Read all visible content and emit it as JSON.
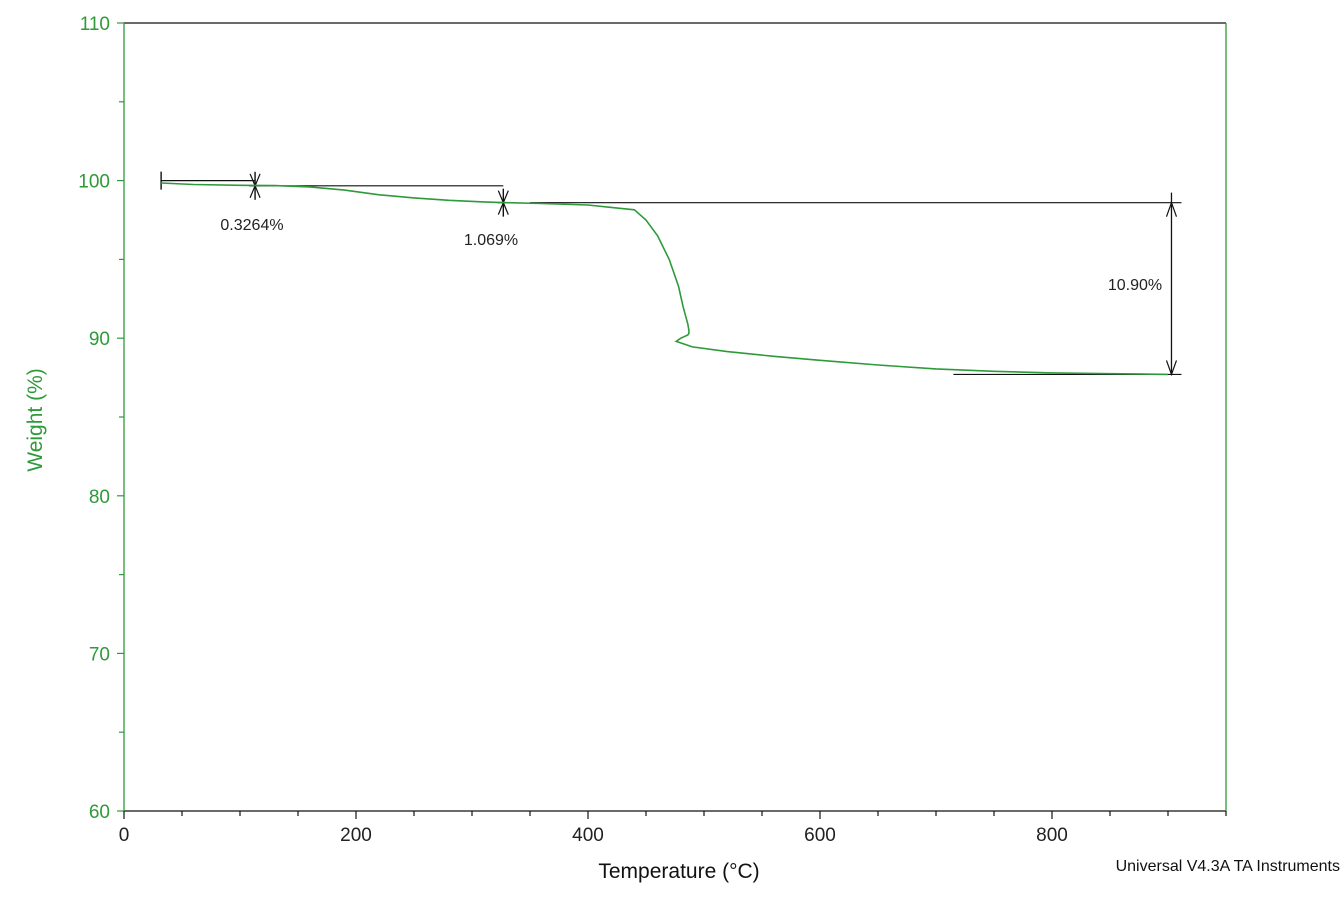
{
  "chart_data": {
    "type": "line",
    "xlabel": "Temperature (°C)",
    "ylabel": "Weight (%)",
    "xlim": [
      0,
      950
    ],
    "ylim": [
      60,
      110
    ],
    "x_ticks": [
      0,
      200,
      400,
      600,
      800
    ],
    "y_ticks": [
      60,
      70,
      80,
      90,
      100,
      110
    ],
    "grid": false,
    "series": [
      {
        "color": "#2e9a3a",
        "x": [
          32,
          60,
          100,
          130,
          160,
          190,
          220,
          250,
          280,
          310,
          330,
          360,
          400,
          420,
          440,
          450,
          460,
          470,
          478,
          482,
          486,
          487,
          487,
          486,
          480,
          476,
          490,
          520,
          560,
          600,
          650,
          700,
          750,
          800,
          850,
          900
        ],
        "y": [
          99.85,
          99.75,
          99.7,
          99.68,
          99.6,
          99.4,
          99.1,
          98.9,
          98.75,
          98.65,
          98.6,
          98.55,
          98.45,
          98.3,
          98.15,
          97.5,
          96.5,
          95.0,
          93.3,
          92.0,
          90.9,
          90.5,
          90.3,
          90.2,
          90.0,
          89.8,
          89.45,
          89.15,
          88.85,
          88.6,
          88.3,
          88.05,
          87.9,
          87.8,
          87.75,
          87.7
        ]
      }
    ],
    "annotations": [
      {
        "label": "0.3264%",
        "x_start": 32,
        "x_end": 113,
        "y_start": 100.0,
        "y_end": 99.67
      },
      {
        "label": "1.069%",
        "x_start": 113,
        "x_end": 327,
        "y_start": 99.67,
        "y_end": 98.6
      },
      {
        "label": "10.90%",
        "x_start": 350,
        "x_end": 903,
        "y_start": 98.6,
        "y_end": 87.7
      }
    ],
    "footer": "Universal V4.3A TA Instruments"
  },
  "colors": {
    "curve": "#2e9a3a",
    "axis_right": "#2e9a3a",
    "axis": "#111111"
  }
}
